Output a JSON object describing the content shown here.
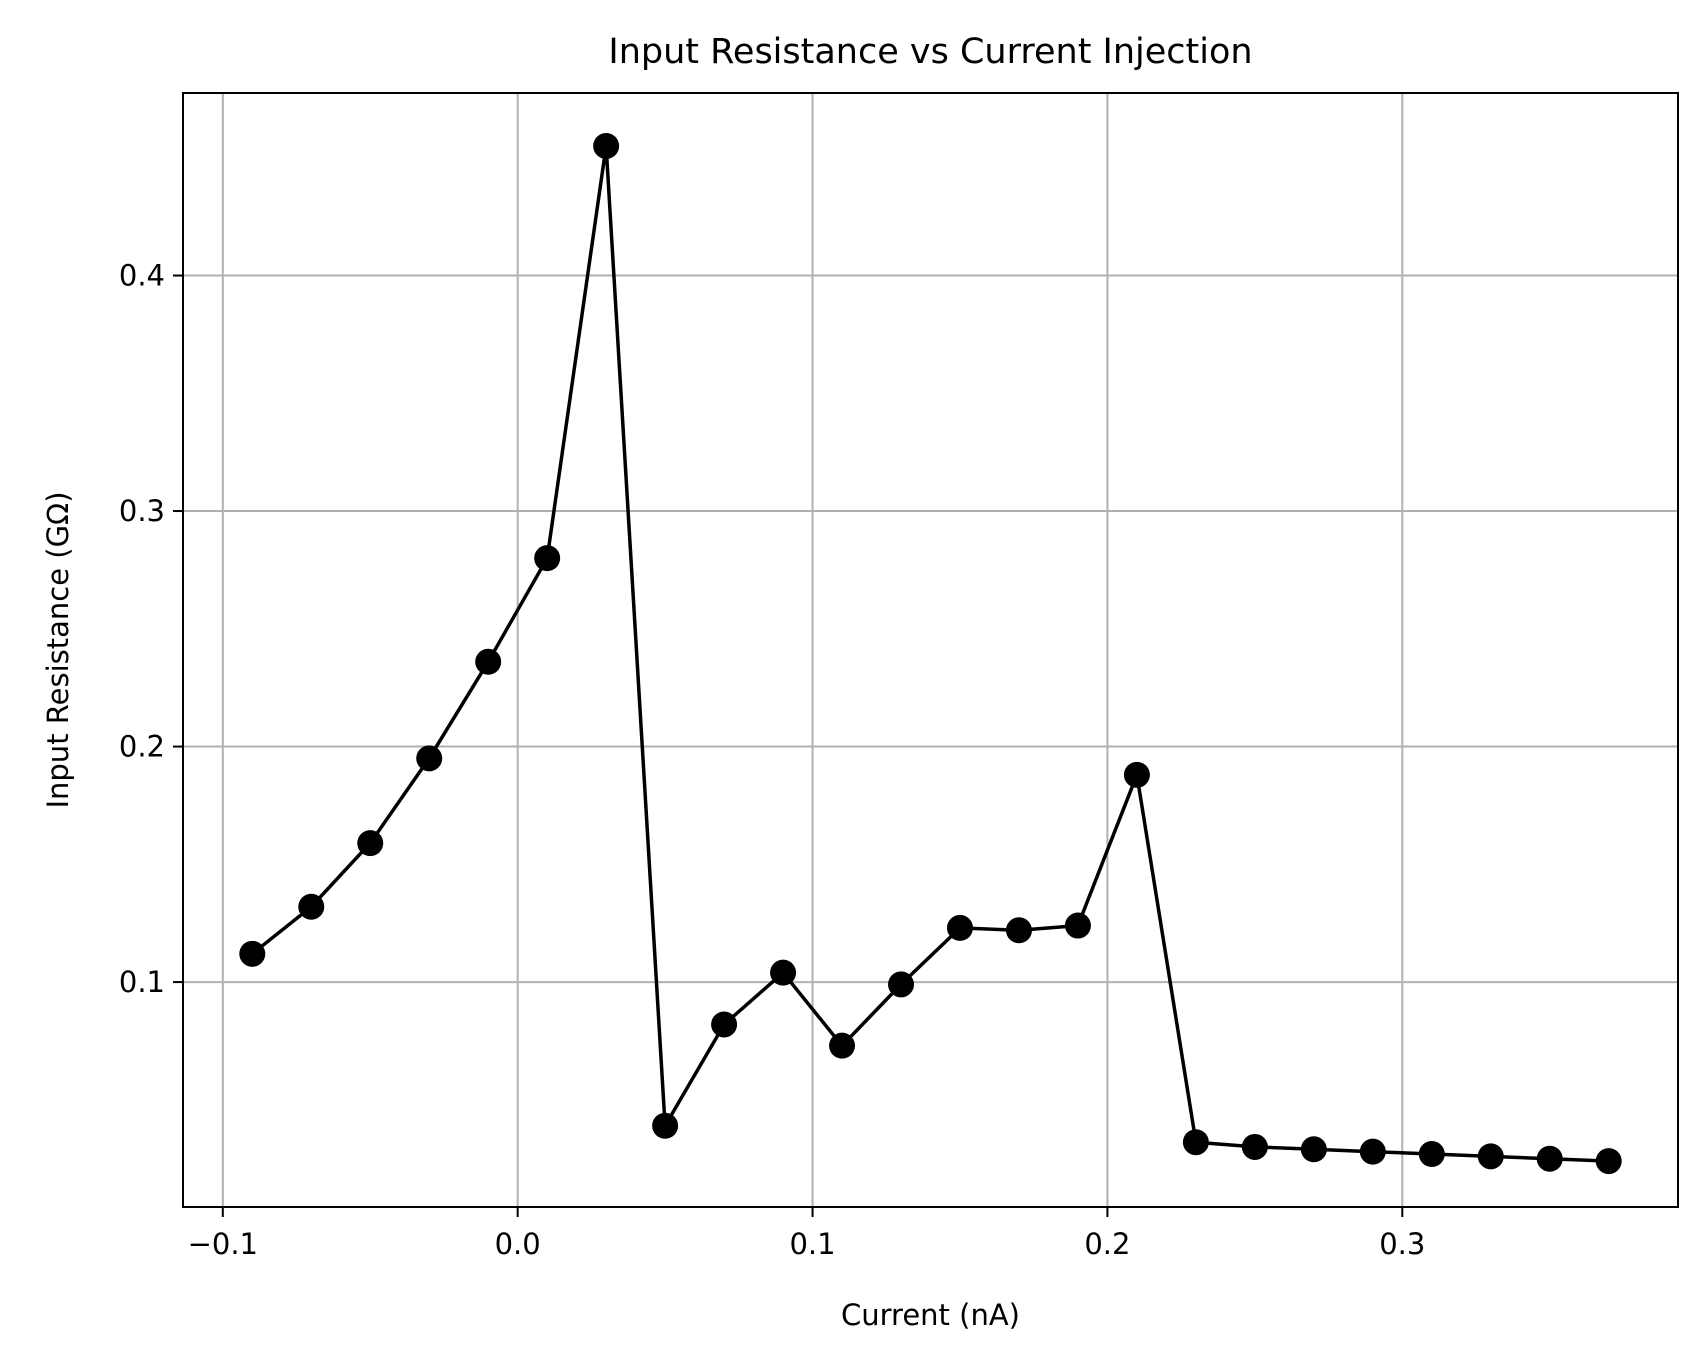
{
  "chart_data": {
    "type": "line",
    "title": "Input Resistance vs Current Injection",
    "xlabel": "Current (nA)",
    "ylabel": "Input Resistance (GΩ)",
    "xlim": [
      -0.1135,
      0.3935
    ],
    "ylim": [
      0.0045,
      0.4775
    ],
    "xticks": [
      -0.1,
      0.0,
      0.1,
      0.2,
      0.3
    ],
    "xtick_labels": [
      "−0.1",
      "0.0",
      "0.1",
      "0.2",
      "0.3"
    ],
    "yticks": [
      0.1,
      0.2,
      0.3,
      0.4
    ],
    "ytick_labels": [
      "0.1",
      "0.2",
      "0.3",
      "0.4"
    ],
    "grid": true,
    "series": [
      {
        "color": "#000000",
        "marker": "circle",
        "x": [
          -0.09,
          -0.07,
          -0.05,
          -0.03,
          -0.01,
          0.01,
          0.03,
          0.05,
          0.07,
          0.09,
          0.11,
          0.13,
          0.15,
          0.17,
          0.19,
          0.21,
          0.23,
          0.25,
          0.27,
          0.29,
          0.31,
          0.33,
          0.35,
          0.37
        ],
        "y": [
          0.112,
          0.132,
          0.159,
          0.195,
          0.236,
          0.28,
          0.455,
          0.039,
          0.082,
          0.104,
          0.073,
          0.099,
          0.123,
          0.122,
          0.124,
          0.188,
          0.032,
          0.03,
          0.029,
          0.028,
          0.027,
          0.026,
          0.025,
          0.024
        ]
      }
    ]
  }
}
